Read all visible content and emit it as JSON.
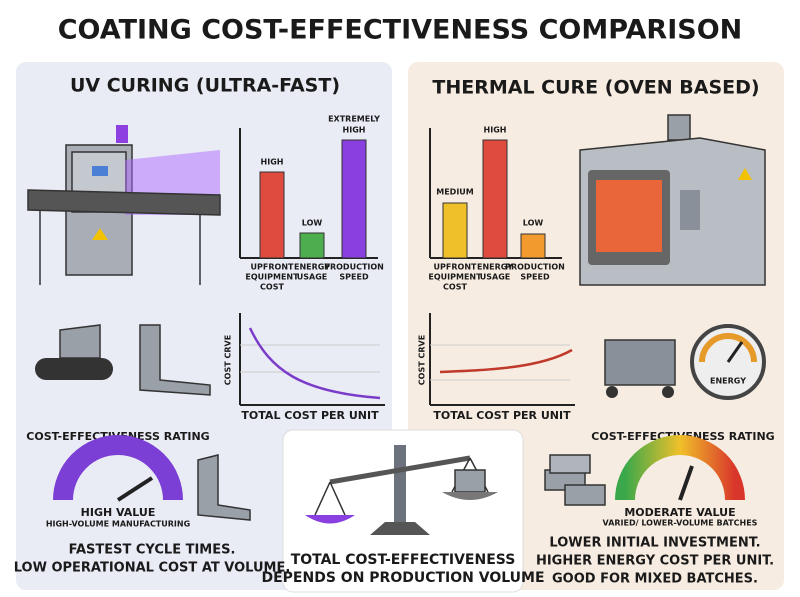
{
  "title": "COATING COST-EFFECTIVENESS COMPARISON",
  "uv": {
    "heading": "UV CURING (ULTRA-FAST)",
    "bar_chart": {
      "bar_labels": [
        [
          "HIGH"
        ],
        [
          "LOW"
        ],
        [
          "EXTREMELY",
          "HIGH"
        ]
      ],
      "categories": [
        [
          "UPFRONT",
          "EQUIPMENT",
          "COST"
        ],
        [
          "ENERGY",
          "USAGE"
        ],
        [
          "PRODUCTION",
          "SPEED"
        ]
      ]
    },
    "cost_curve": {
      "y_label": "COST CRVE",
      "x_label": "TOTAL COST PER UNIT"
    },
    "rating": {
      "heading": "COST-EFFECTIVENESS RATING",
      "value": "HIGH VALUE",
      "note": "HIGH-VOLUME MANUFACTURING"
    },
    "summary": [
      "FASTEST CYCLE TIMES.",
      "LOW OPERATIONAL COST AT VOLUME."
    ]
  },
  "thermal": {
    "heading": "THERMAL CURE (OVEN BASED)",
    "bar_chart": {
      "bar_labels": [
        [
          "MEDIUM"
        ],
        [
          "HIGH"
        ],
        [
          "LOW"
        ]
      ],
      "categories": [
        [
          "UPFRONT",
          "EQUIPMENT",
          "COST"
        ],
        [
          "ENERGY",
          "USAGE"
        ],
        [
          "PRODUCTION",
          "SPEED"
        ]
      ]
    },
    "cost_curve": {
      "y_label": "COST CRVE",
      "x_label": "TOTAL COST PER UNIT"
    },
    "gauge_label": "ENERGY",
    "rating": {
      "heading": "COST-EFFECTIVENESS RATING",
      "value": "MODERATE VALUE",
      "note": "VARIED/ LOWER-VOLUME BATCHES"
    },
    "summary": [
      "LOWER INITIAL INVESTMENT.",
      "HIGHER ENERGY COST PER UNIT.",
      "GOOD FOR MIXED BATCHES."
    ]
  },
  "center": {
    "lines": [
      "TOTAL COST-EFFECTIVENESS",
      "DEPENDS ON PRODUCTION VOLUME"
    ]
  }
}
